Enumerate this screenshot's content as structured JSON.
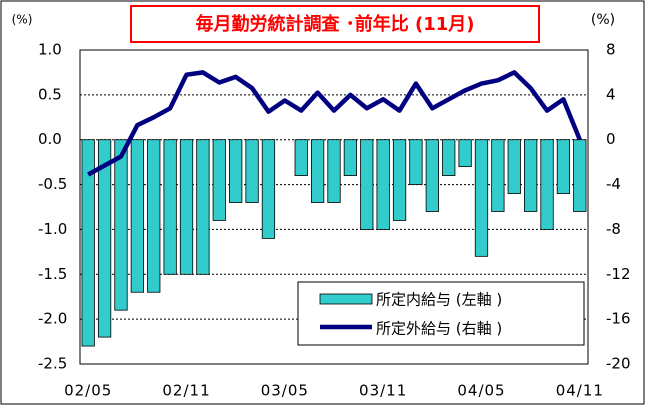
{
  "chart_data": {
    "type": "bar_line",
    "title": "毎月勤労統計調査 ･前年比 (11月)",
    "y_unit": "(%)",
    "y2_unit": "(%)",
    "categories": [
      "02/05",
      null,
      null,
      null,
      null,
      null,
      "02/11",
      null,
      null,
      null,
      null,
      null,
      "03/05",
      null,
      null,
      null,
      null,
      null,
      "03/11",
      null,
      null,
      null,
      null,
      null,
      "04/05",
      null,
      null,
      null,
      null,
      null,
      "04/11"
    ],
    "series": [
      {
        "name": "所定内給与 (左軸 )",
        "type": "bar",
        "color": "#33cccc",
        "values": [
          -2.3,
          -2.2,
          -1.9,
          -1.7,
          -1.7,
          -1.5,
          -1.5,
          -1.5,
          -0.9,
          -0.7,
          -0.7,
          -1.1,
          0,
          -0.4,
          -0.7,
          -0.7,
          -0.4,
          -1.0,
          -1.0,
          -0.9,
          -0.5,
          -0.8,
          -0.4,
          -0.3,
          -1.3,
          -0.8,
          -0.6,
          -0.8,
          -1.0,
          -0.6,
          -0.8
        ]
      },
      {
        "name": "所定外給与 (右軸 )",
        "type": "line",
        "axis": "y2",
        "color": "#000080",
        "values": [
          -3.1,
          -2.3,
          -1.5,
          1.3,
          2.0,
          2.8,
          5.8,
          6.0,
          5.1,
          5.6,
          4.6,
          2.5,
          3.5,
          2.6,
          4.2,
          2.6,
          4.0,
          2.8,
          3.6,
          2.6,
          5.0,
          2.8,
          3.6,
          4.4,
          5.0,
          5.3,
          6.0,
          4.6,
          2.6,
          3.6,
          0
        ]
      }
    ],
    "ylim": [
      -2.5,
      1.0
    ],
    "yticks": [
      {
        "value": 1,
        "label": "1.0"
      },
      0.5,
      {
        "value": 0,
        "label": "0.0"
      },
      -0.5,
      {
        "value": -1,
        "label": "-1.0"
      },
      -1.5,
      {
        "value": -2,
        "label": "-2.0"
      },
      -2.5
    ],
    "y2lim": [
      -20,
      8
    ],
    "y2ticks": [
      8,
      4,
      0,
      -4,
      -8,
      -12,
      -16,
      -20
    ],
    "grid": true,
    "legend": "lower right"
  }
}
